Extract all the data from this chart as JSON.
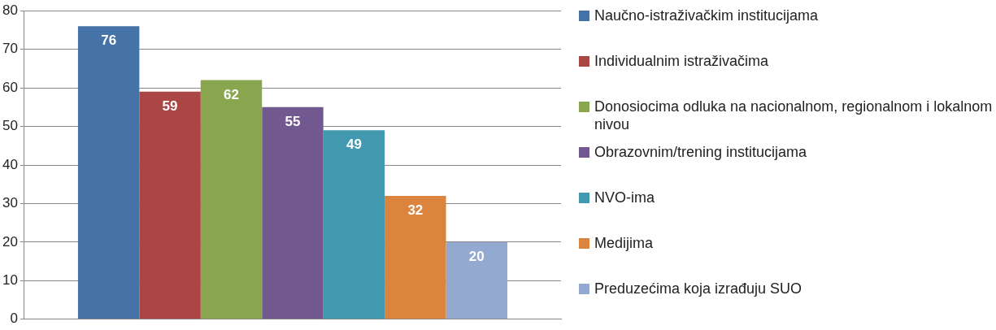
{
  "chart_data": {
    "type": "bar",
    "categories": [
      null
    ],
    "series": [
      {
        "name": "Naučno-istraživačkim institucijama",
        "color": "#4572a7",
        "values": [
          76
        ]
      },
      {
        "name": "Individualnim istraživačima",
        "color": "#aa4643",
        "values": [
          59
        ]
      },
      {
        "name": "Donosiocima odluka na nacionalnom, regionalnom i lokalnom nivou",
        "color": "#89a54e",
        "values": [
          62
        ]
      },
      {
        "name": "Obrazovnim/trening institucijama",
        "color": "#71588f",
        "values": [
          55
        ]
      },
      {
        "name": "NVO-ima",
        "color": "#4198af",
        "values": [
          49
        ]
      },
      {
        "name": "Medijima",
        "color": "#db843d",
        "values": [
          32
        ]
      },
      {
        "name": "Preduzećima koja izrađuju SUO",
        "color": "#93a9cf",
        "values": [
          20
        ]
      }
    ],
    "ylim": [
      0,
      80
    ],
    "yticks": [
      0,
      10,
      20,
      30,
      40,
      50,
      60,
      70,
      80
    ],
    "grid": "y",
    "legend": "right",
    "data_labels": true
  }
}
